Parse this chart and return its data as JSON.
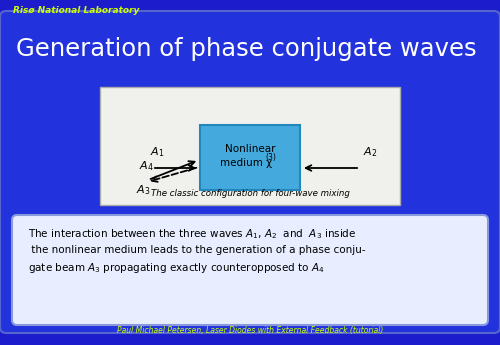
{
  "bg_color": "#1c1ccc",
  "slide_bg": "#2233dd",
  "title": "Generation of phase conjugate waves",
  "title_color": "#ffffff",
  "title_fontsize": 17.5,
  "header_text": "Risø National Laboratory",
  "header_color": "#ccff00",
  "footer_text": "Paul Michael Petersen, Laser Diodes with External Feedback (tutorial)",
  "footer_color": "#ccff00",
  "diagram_bg": "#f0f0ec",
  "nlm_box_color": "#44aadd",
  "caption": "The classic configuration for four-wave mixing",
  "textbox_bg": "#e8eeff",
  "textbox_color": "#ffffff"
}
